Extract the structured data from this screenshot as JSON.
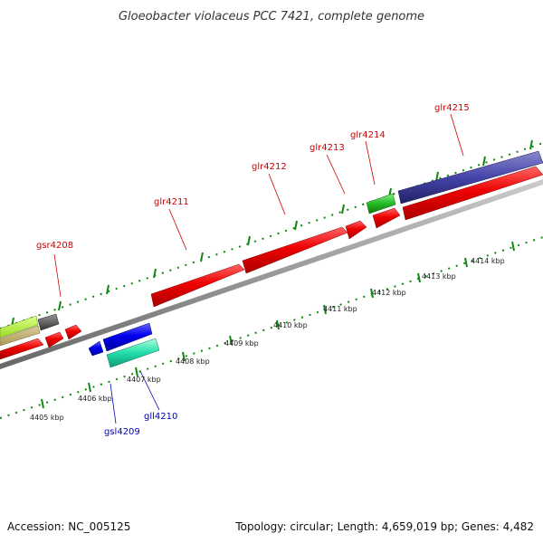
{
  "title": "Gloeobacter violaceus PCC 7421, complete genome",
  "footer": {
    "accession": "Accession: NC_005125",
    "summary": "Topology: circular; Length: 4,659,019 bp; Genes: 4,482"
  },
  "colors": {
    "forward_label": "#cc0000",
    "reverse_label": "#0000bb",
    "backbone": "#999999",
    "ruler_ticks": "#118811"
  },
  "kbp_labels": [
    "4405 kbp",
    "4406 kbp",
    "4407 kbp",
    "4408 kbp",
    "4409 kbp",
    "4410 kbp",
    "4411 kbp",
    "4412 kbp",
    "4413 kbp",
    "4414 kbp"
  ],
  "gene_labels": {
    "forward": [
      "gsr4208",
      "glr4211",
      "glr4212",
      "glr4213",
      "glr4214",
      "glr4215"
    ],
    "reverse": [
      "gsl4209",
      "gll4210"
    ]
  }
}
